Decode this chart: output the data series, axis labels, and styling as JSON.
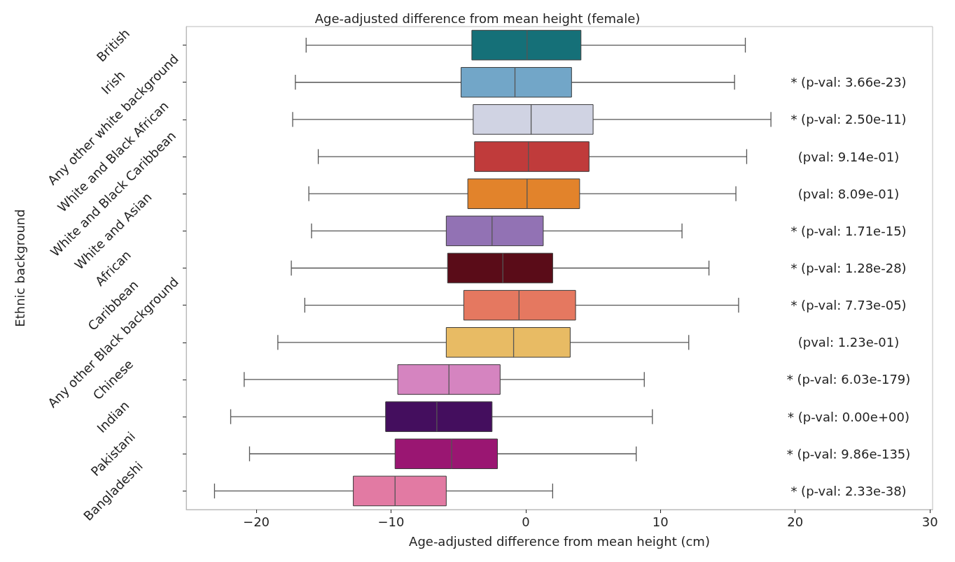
{
  "chart_data": {
    "type": "box",
    "orientation": "horizontal",
    "title": "Age-adjusted difference from mean height (female)",
    "xlabel": "Age-adjusted difference from mean height (cm)",
    "ylabel": "Ethnic background",
    "categories": [
      "British",
      "Irish",
      "Any other white background",
      "White and Black African",
      "White and Black Caribbean",
      "White and Asian",
      "African",
      "Caribbean",
      "Any other Black background",
      "Chinese",
      "Indian",
      "Pakistani",
      "Bangladeshi"
    ],
    "colors": [
      "#157078",
      "#72a6c8",
      "#d0d3e3",
      "#c03b3b",
      "#e2832b",
      "#9272b4",
      "#5a0c18",
      "#e57860",
      "#e8bb64",
      "#d584c0",
      "#440e5e",
      "#9a1672",
      "#e27aa3"
    ],
    "boxes": [
      {
        "low": -16.3,
        "q1": -4.0,
        "median": 0.1,
        "q3": 4.1,
        "high": 16.3
      },
      {
        "low": -17.1,
        "q1": -4.8,
        "median": -0.8,
        "q3": 3.4,
        "high": 15.5
      },
      {
        "low": -17.3,
        "q1": -3.9,
        "median": 0.4,
        "q3": 5.0,
        "high": 18.2
      },
      {
        "low": -15.4,
        "q1": -3.8,
        "median": 0.2,
        "q3": 4.7,
        "high": 16.4
      },
      {
        "low": -16.1,
        "q1": -4.3,
        "median": 0.1,
        "q3": 4.0,
        "high": 15.6
      },
      {
        "low": -15.9,
        "q1": -5.9,
        "median": -2.5,
        "q3": 1.3,
        "high": 11.6
      },
      {
        "low": -17.4,
        "q1": -5.8,
        "median": -1.7,
        "q3": 2.0,
        "high": 13.6
      },
      {
        "low": -16.4,
        "q1": -4.6,
        "median": -0.5,
        "q3": 3.7,
        "high": 15.8
      },
      {
        "low": -18.4,
        "q1": -5.9,
        "median": -0.9,
        "q3": 3.3,
        "high": 12.1
      },
      {
        "low": -20.9,
        "q1": -9.5,
        "median": -5.7,
        "q3": -1.9,
        "high": 8.8
      },
      {
        "low": -21.9,
        "q1": -10.4,
        "median": -6.6,
        "q3": -2.5,
        "high": 9.4
      },
      {
        "low": -20.5,
        "q1": -9.7,
        "median": -5.5,
        "q3": -2.1,
        "high": 8.2
      },
      {
        "low": -23.1,
        "q1": -12.8,
        "median": -9.7,
        "q3": -5.9,
        "high": 2.0
      }
    ],
    "xlim": [
      -25.2,
      30.2
    ],
    "xticks": [
      -20,
      -10,
      0,
      10,
      20,
      30
    ],
    "annotations": [
      "* (p-val: 3.66e-23)",
      "* (p-val: 2.50e-11)",
      "(pval: 9.14e-01)",
      "(pval: 8.09e-01)",
      "* (p-val: 1.71e-15)",
      "* (p-val: 1.28e-28)",
      "* (p-val: 7.73e-05)",
      "(pval: 1.23e-01)",
      "* (p-val: 6.03e-179)",
      "* (p-val: 0.00e+00)",
      "* (p-val: 9.86e-135)",
      "* (p-val: 2.33e-38)"
    ]
  }
}
